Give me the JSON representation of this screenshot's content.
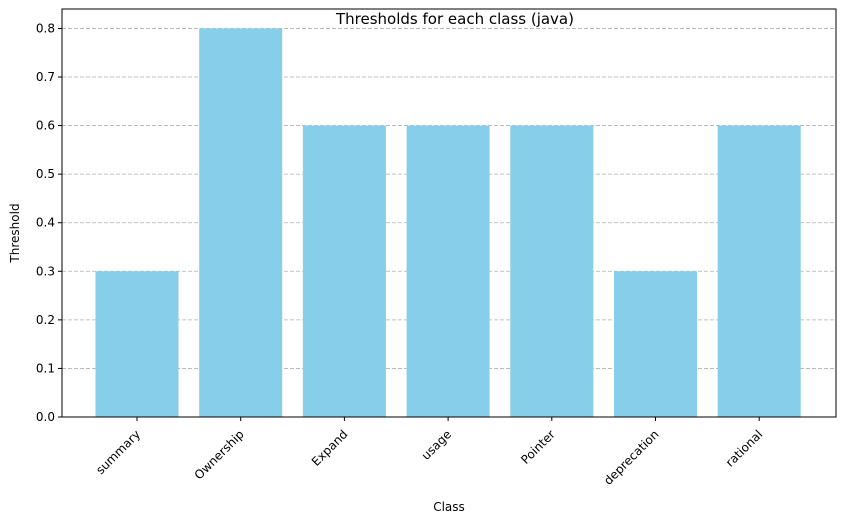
{
  "chart_data": {
    "type": "bar",
    "title": "Thresholds for each class (java)",
    "xlabel": "Class",
    "ylabel": "Threshold",
    "categories": [
      "summary",
      "Ownership",
      "Expand",
      "usage",
      "Pointer",
      "deprecation",
      "rational"
    ],
    "values": [
      0.3,
      0.8,
      0.6,
      0.6,
      0.6,
      0.3,
      0.6
    ],
    "ylim": [
      0,
      0.84
    ],
    "yticks": [
      "0.0",
      "0.1",
      "0.2",
      "0.3",
      "0.4",
      "0.5",
      "0.6",
      "0.7",
      "0.8"
    ],
    "grid": "y-dashed",
    "bar_color": "#87ceeb",
    "grid_color": "#b0b0b0"
  }
}
